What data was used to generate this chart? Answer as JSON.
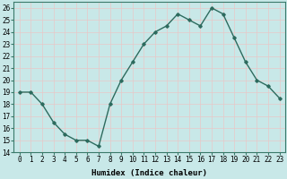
{
  "x": [
    0,
    1,
    2,
    3,
    4,
    5,
    6,
    7,
    8,
    9,
    10,
    11,
    12,
    13,
    14,
    15,
    16,
    17,
    18,
    19,
    20,
    21,
    22,
    23
  ],
  "y": [
    19,
    19,
    18,
    16.5,
    15.5,
    15,
    15,
    14.5,
    18,
    20,
    21.5,
    23,
    24,
    24.5,
    25.5,
    25,
    24.5,
    26,
    25.5,
    23.5,
    21.5,
    20,
    19.5,
    18.5
  ],
  "line_color": "#2d6b5e",
  "marker": "D",
  "marker_size": 1.8,
  "line_width": 1.0,
  "xlabel": "Humidex (Indice chaleur)",
  "ylabel": "",
  "xlim": [
    -0.5,
    23.5
  ],
  "ylim": [
    14,
    26.5
  ],
  "yticks": [
    14,
    15,
    16,
    17,
    18,
    19,
    20,
    21,
    22,
    23,
    24,
    25,
    26
  ],
  "xticks": [
    0,
    1,
    2,
    3,
    4,
    5,
    6,
    7,
    8,
    9,
    10,
    11,
    12,
    13,
    14,
    15,
    16,
    17,
    18,
    19,
    20,
    21,
    22,
    23
  ],
  "background_color": "#c8e8e8",
  "grid_color": "#e8c8c8",
  "tick_fontsize": 5.5,
  "xlabel_fontsize": 6.5
}
